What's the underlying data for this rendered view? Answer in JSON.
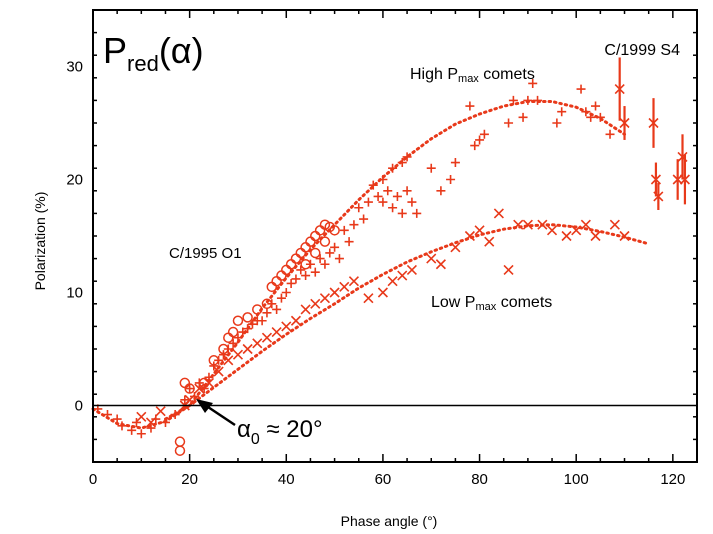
{
  "chart_data": {
    "type": "scatter",
    "title": "P_red(α)",
    "title_main": "P",
    "title_sub": "red",
    "title_tail": "(α)",
    "xlabel": "Phase angle (°)",
    "ylabel": "Polarization (%)",
    "xlim": [
      0,
      125
    ],
    "ylim": [
      -5,
      35
    ],
    "x_ticks": [
      0,
      20,
      40,
      60,
      80,
      100,
      120
    ],
    "y_ticks": [
      0,
      10,
      20,
      30
    ],
    "grid": false,
    "zero_line": true,
    "annotations": {
      "comet_s4": "C/1999 S4",
      "high_label": "High P",
      "high_sub": "max",
      "high_tail": " comets",
      "low_label": "Low P",
      "low_sub": "max",
      "low_tail": " comets",
      "comet_o1": "C/1995 O1",
      "alpha_sym": "α",
      "alpha_sub": "0",
      "alpha_tail": " ≈ 20°"
    },
    "colors": {
      "data": "#e8391a",
      "axis": "#000000",
      "arrow": "#000000"
    },
    "series": [
      {
        "name": "C/1999 S4",
        "marker": "x-with-error",
        "points": [
          [
            109,
            28,
            2.8
          ],
          [
            110,
            25,
            1.5
          ],
          [
            116,
            25,
            2.2
          ],
          [
            116.5,
            20,
            1.5
          ],
          [
            117,
            18.5,
            1.2
          ],
          [
            121,
            20,
            1.8
          ],
          [
            122,
            22,
            2.0
          ],
          [
            122.5,
            20,
            2.2
          ]
        ]
      },
      {
        "name": "High Pmax comets",
        "marker": "plus",
        "points": [
          [
            1,
            -0.3
          ],
          [
            3,
            -0.8
          ],
          [
            5,
            -1.2
          ],
          [
            6,
            -1.8
          ],
          [
            8,
            -2.2
          ],
          [
            9,
            -1.5
          ],
          [
            10,
            -2.5
          ],
          [
            12,
            -2.0
          ],
          [
            13,
            -1.2
          ],
          [
            15,
            -1.5
          ],
          [
            17,
            -0.8
          ],
          [
            19,
            0.5
          ],
          [
            20,
            1.5
          ],
          [
            21,
            0.8
          ],
          [
            22,
            2.0
          ],
          [
            23,
            1.5
          ],
          [
            24,
            2.5
          ],
          [
            25,
            3.5
          ],
          [
            26,
            4.0
          ],
          [
            27,
            4.5
          ],
          [
            28,
            5.0
          ],
          [
            29,
            5.5
          ],
          [
            30,
            6.0
          ],
          [
            31,
            6.5
          ],
          [
            32,
            6.8
          ],
          [
            33,
            7.2
          ],
          [
            34,
            7.5
          ],
          [
            35,
            7.5
          ],
          [
            36,
            8.2
          ],
          [
            37,
            9.0
          ],
          [
            38,
            8.5
          ],
          [
            39,
            9.5
          ],
          [
            40,
            10.0
          ],
          [
            41,
            10.8
          ],
          [
            42,
            11.2
          ],
          [
            43,
            12.0
          ],
          [
            44,
            11.5
          ],
          [
            45,
            12.5
          ],
          [
            46,
            11.8
          ],
          [
            47,
            13.0
          ],
          [
            48,
            12.5
          ],
          [
            49,
            13.5
          ],
          [
            50,
            14.0
          ],
          [
            51,
            13.0
          ],
          [
            52,
            15.5
          ],
          [
            53,
            14.5
          ],
          [
            54,
            16.0
          ],
          [
            55,
            17.5
          ],
          [
            56,
            16.5
          ],
          [
            57,
            18.0
          ],
          [
            58,
            19.5
          ],
          [
            59,
            18.5
          ],
          [
            60,
            18.0
          ],
          [
            61,
            19.0
          ],
          [
            62,
            17.5
          ],
          [
            63,
            18.5
          ],
          [
            64,
            17.0
          ],
          [
            65,
            19.0
          ],
          [
            66,
            18.0
          ],
          [
            67,
            17.0
          ],
          [
            60,
            20.0
          ],
          [
            62,
            21.0
          ],
          [
            64,
            21.5
          ],
          [
            65,
            22.0
          ],
          [
            70,
            21.0
          ],
          [
            72,
            19.0
          ],
          [
            74,
            20.0
          ],
          [
            75,
            21.5
          ],
          [
            78,
            26.5
          ],
          [
            79,
            23.0
          ],
          [
            80,
            23.5
          ],
          [
            81,
            24.0
          ],
          [
            86,
            25.0
          ],
          [
            87,
            27.0
          ],
          [
            89,
            25.5
          ],
          [
            90,
            27.0
          ],
          [
            91,
            28.5
          ],
          [
            92,
            27.0
          ],
          [
            96,
            25.0
          ],
          [
            97,
            26.0
          ],
          [
            101,
            28.0
          ],
          [
            102,
            26.0
          ],
          [
            103,
            25.5
          ],
          [
            104,
            26.5
          ],
          [
            105,
            25.5
          ],
          [
            107,
            24.0
          ]
        ]
      },
      {
        "name": "C/1995 O1",
        "marker": "circle",
        "points": [
          [
            18,
            -4.0
          ],
          [
            18,
            -3.2
          ],
          [
            19,
            2.0
          ],
          [
            20,
            1.5
          ],
          [
            23,
            2.0
          ],
          [
            25,
            4.0
          ],
          [
            27,
            5.0
          ],
          [
            28,
            6.0
          ],
          [
            29,
            6.5
          ],
          [
            30,
            7.5
          ],
          [
            32,
            7.8
          ],
          [
            34,
            8.5
          ],
          [
            36,
            9.0
          ],
          [
            37,
            10.5
          ],
          [
            38,
            11.0
          ],
          [
            39,
            11.5
          ],
          [
            40,
            12.0
          ],
          [
            41,
            12.5
          ],
          [
            42,
            13.0
          ],
          [
            43,
            13.5
          ],
          [
            44,
            14.0
          ],
          [
            45,
            14.5
          ],
          [
            46,
            15.0
          ],
          [
            47,
            15.5
          ],
          [
            48,
            16.0
          ],
          [
            49,
            15.8
          ],
          [
            50,
            15.5
          ],
          [
            48,
            14.5
          ],
          [
            46,
            13.5
          ],
          [
            44,
            12.5
          ]
        ]
      },
      {
        "name": "Low Pmax comets",
        "marker": "x",
        "points": [
          [
            10,
            -1.0
          ],
          [
            12,
            -1.5
          ],
          [
            14,
            -0.5
          ],
          [
            19,
            0.0
          ],
          [
            20,
            0.5
          ],
          [
            22,
            1.5
          ],
          [
            24,
            2.0
          ],
          [
            26,
            3.0
          ],
          [
            28,
            4.0
          ],
          [
            30,
            4.5
          ],
          [
            32,
            5.0
          ],
          [
            34,
            5.5
          ],
          [
            36,
            6.0
          ],
          [
            38,
            6.5
          ],
          [
            40,
            7.0
          ],
          [
            42,
            7.5
          ],
          [
            44,
            8.5
          ],
          [
            46,
            9.0
          ],
          [
            48,
            9.5
          ],
          [
            50,
            10.0
          ],
          [
            52,
            10.5
          ],
          [
            54,
            11.0
          ],
          [
            57,
            9.5
          ],
          [
            60,
            10.0
          ],
          [
            62,
            11.0
          ],
          [
            64,
            11.5
          ],
          [
            66,
            12.0
          ],
          [
            70,
            13.0
          ],
          [
            72,
            12.5
          ],
          [
            75,
            14.0
          ],
          [
            78,
            15.0
          ],
          [
            80,
            15.5
          ],
          [
            82,
            14.5
          ],
          [
            84,
            17.0
          ],
          [
            86,
            12.0
          ],
          [
            88,
            16.0
          ],
          [
            90,
            16.0
          ],
          [
            93,
            16.0
          ],
          [
            95,
            15.5
          ],
          [
            98,
            15.0
          ],
          [
            100,
            15.5
          ],
          [
            102,
            16.0
          ],
          [
            104,
            15.0
          ],
          [
            108,
            16.0
          ],
          [
            110,
            15.0
          ]
        ]
      }
    ],
    "fits": [
      {
        "name": "High Pmax comets",
        "points": [
          [
            0,
            -0.3
          ],
          [
            5,
            -1.6
          ],
          [
            10,
            -2.0
          ],
          [
            15,
            -1.4
          ],
          [
            20,
            0.0
          ],
          [
            25,
            2.8
          ],
          [
            30,
            5.6
          ],
          [
            35,
            8.6
          ],
          [
            40,
            11.3
          ],
          [
            45,
            13.8
          ],
          [
            50,
            16.0
          ],
          [
            55,
            18.2
          ],
          [
            60,
            20.2
          ],
          [
            65,
            22.0
          ],
          [
            70,
            23.6
          ],
          [
            75,
            24.9
          ],
          [
            80,
            25.8
          ],
          [
            85,
            26.5
          ],
          [
            90,
            26.9
          ],
          [
            95,
            26.9
          ],
          [
            100,
            26.4
          ],
          [
            105,
            25.4
          ],
          [
            110,
            24.0
          ]
        ]
      },
      {
        "name": "Low Pmax comets",
        "points": [
          [
            15,
            -1.2
          ],
          [
            20,
            0.0
          ],
          [
            25,
            1.6
          ],
          [
            30,
            3.2
          ],
          [
            35,
            4.8
          ],
          [
            40,
            6.3
          ],
          [
            45,
            7.7
          ],
          [
            50,
            9.0
          ],
          [
            55,
            10.4
          ],
          [
            60,
            11.6
          ],
          [
            65,
            12.7
          ],
          [
            70,
            13.6
          ],
          [
            75,
            14.4
          ],
          [
            80,
            15.1
          ],
          [
            85,
            15.6
          ],
          [
            90,
            15.9
          ],
          [
            95,
            16.0
          ],
          [
            100,
            15.8
          ],
          [
            105,
            15.4
          ],
          [
            110,
            14.9
          ],
          [
            115,
            14.3
          ]
        ]
      }
    ]
  }
}
